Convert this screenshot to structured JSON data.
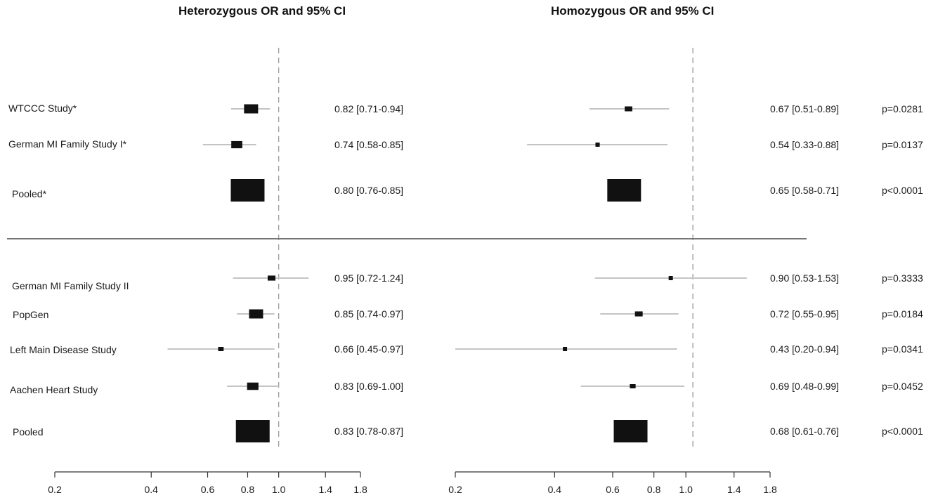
{
  "panels": {
    "heterozygous": {
      "title": "Heterozygous OR and 95% CI"
    },
    "homozygous": {
      "title": "Homozygous OR and 95% CI"
    }
  },
  "chart_data": {
    "type": "forest",
    "scale": "log",
    "reference_line": 1.0,
    "tick_labels": [
      "0.2",
      "0.4",
      "0.6",
      "0.8",
      "1.0",
      "1.4",
      "1.8"
    ],
    "ticks": [
      0.2,
      0.4,
      0.6,
      0.8,
      1.0,
      1.4,
      1.8
    ],
    "groups": [
      {
        "rows": [
          {
            "label": "WTCCC Study*",
            "het": {
              "or": 0.82,
              "lo": 0.71,
              "hi": 0.94,
              "text": "0.82 [0.71-0.94]"
            },
            "hom": {
              "or": 0.67,
              "lo": 0.51,
              "hi": 0.89,
              "text": "0.67 [0.51-0.89]",
              "p": "p=0.0281"
            }
          },
          {
            "label": "German MI Family Study I*",
            "het": {
              "or": 0.74,
              "lo": 0.58,
              "hi": 0.85,
              "text": "0.74 [0.58-0.85]"
            },
            "hom": {
              "or": 0.54,
              "lo": 0.33,
              "hi": 0.88,
              "text": "0.54 [0.33-0.88]",
              "p": "p=0.0137"
            }
          },
          {
            "label": "Pooled*",
            "pooled": true,
            "het": {
              "or": 0.8,
              "lo": 0.76,
              "hi": 0.85,
              "text": "0.80 [0.76-0.85]"
            },
            "hom": {
              "or": 0.65,
              "lo": 0.58,
              "hi": 0.71,
              "text": "0.65 [0.58-0.71]",
              "p": "p<0.0001"
            }
          }
        ]
      },
      {
        "rows": [
          {
            "label": "German MI Family Study II",
            "het": {
              "or": 0.95,
              "lo": 0.72,
              "hi": 1.24,
              "text": "0.95 [0.72-1.24]"
            },
            "hom": {
              "or": 0.9,
              "lo": 0.53,
              "hi": 1.53,
              "text": "0.90 [0.53-1.53]",
              "p": "p=0.3333"
            }
          },
          {
            "label": "PopGen",
            "het": {
              "or": 0.85,
              "lo": 0.74,
              "hi": 0.97,
              "text": "0.85 [0.74-0.97]"
            },
            "hom": {
              "or": 0.72,
              "lo": 0.55,
              "hi": 0.95,
              "text": "0.72 [0.55-0.95]",
              "p": "p=0.0184"
            }
          },
          {
            "label": "Left Main Disease Study",
            "het": {
              "or": 0.66,
              "lo": 0.45,
              "hi": 0.97,
              "text": "0.66 [0.45-0.97]"
            },
            "hom": {
              "or": 0.43,
              "lo": 0.2,
              "hi": 0.94,
              "text": "0.43 [0.20-0.94]",
              "p": "p=0.0341"
            }
          },
          {
            "label": "Aachen Heart Study",
            "het": {
              "or": 0.83,
              "lo": 0.69,
              "hi": 1.0,
              "text": "0.83 [0.69-1.00]"
            },
            "hom": {
              "or": 0.69,
              "lo": 0.48,
              "hi": 0.99,
              "text": "0.69 [0.48-0.99]",
              "p": "p=0.0452"
            }
          },
          {
            "label": "Pooled",
            "pooled": true,
            "het": {
              "or": 0.83,
              "lo": 0.78,
              "hi": 0.87,
              "text": "0.83 [0.78-0.87]"
            },
            "hom": {
              "or": 0.68,
              "lo": 0.61,
              "hi": 0.76,
              "text": "0.68 [0.61-0.76]",
              "p": "p<0.0001"
            }
          }
        ]
      }
    ]
  }
}
